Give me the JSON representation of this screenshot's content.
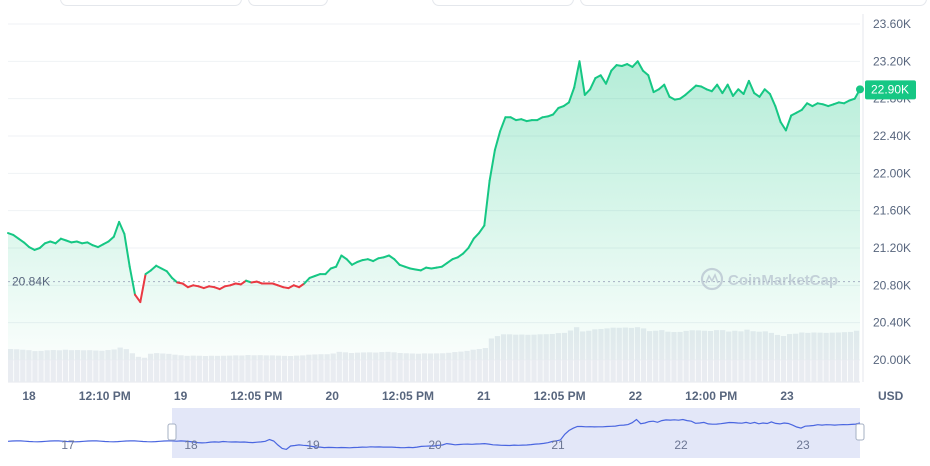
{
  "chart_data": {
    "type": "area",
    "y_ticks": [
      "23.60K",
      "23.20K",
      "22.80K",
      "22.40K",
      "22.00K",
      "21.60K",
      "21.20K",
      "20.80K",
      "20.40K",
      "20.00K"
    ],
    "ylim": [
      20000,
      23600
    ],
    "x_ticks": [
      "18",
      "12:10 PM",
      "19",
      "12:05 PM",
      "20",
      "12:05 PM",
      "21",
      "12:05 PM",
      "22",
      "12:00 PM",
      "23"
    ],
    "currency": "USD",
    "current_price": 22900,
    "current_price_label": "22.90K",
    "reference_price": 20840,
    "reference_label": "20.84K",
    "watermark": "CoinMarketCap",
    "navigator_ticks": [
      "17",
      "18",
      "19",
      "20",
      "21",
      "22",
      "23"
    ],
    "colors": {
      "up": "#16c784",
      "down": "#ea3943",
      "area": "#16c784"
    },
    "series": [
      {
        "values": [
          21360,
          21340,
          21300,
          21260,
          21210,
          21180,
          21200,
          21250,
          21270,
          21250,
          21300,
          21280,
          21260,
          21270,
          21250,
          21260,
          21230,
          21210,
          21240,
          21270,
          21320,
          21480,
          21350,
          21000,
          20700,
          20620,
          20920,
          20960,
          21010,
          20980,
          20950,
          20880,
          20830,
          20820,
          20780,
          20800,
          20790,
          20770,
          20790,
          20780,
          20760,
          20790,
          20800,
          20820,
          20810,
          20850,
          20830,
          20840,
          20820,
          20820,
          20820,
          20800,
          20780,
          20770,
          20800,
          20780,
          20820,
          20880,
          20900,
          20920,
          20920,
          20980,
          21000,
          21120,
          21080,
          21020,
          21050,
          21070,
          21080,
          21060,
          21090,
          21100,
          21120,
          21080,
          21020,
          21000,
          20980,
          20970,
          20960,
          20990,
          20980,
          20990,
          21000,
          21040,
          21080,
          21100,
          21140,
          21200,
          21300,
          21360,
          21440,
          21920,
          22250,
          22450,
          22600,
          22600,
          22570,
          22580,
          22560,
          22570,
          22570,
          22600,
          22610,
          22630,
          22700,
          22720,
          22760,
          22920,
          23200,
          22840,
          22900,
          23020,
          23050,
          22960,
          23100,
          23160,
          23150,
          23170,
          23140,
          23200,
          23100,
          23050,
          22870,
          22900,
          22950,
          22820,
          22790,
          22800,
          22840,
          22890,
          22940,
          22930,
          22900,
          22880,
          22950,
          22860,
          22950,
          22830,
          22900,
          22850,
          22990,
          22860,
          22820,
          22900,
          22850,
          22720,
          22550,
          22460,
          22620,
          22650,
          22680,
          22750,
          22720,
          22750,
          22740,
          22720,
          22740,
          22760,
          22750,
          22780,
          22800,
          22900
        ]
      }
    ]
  }
}
